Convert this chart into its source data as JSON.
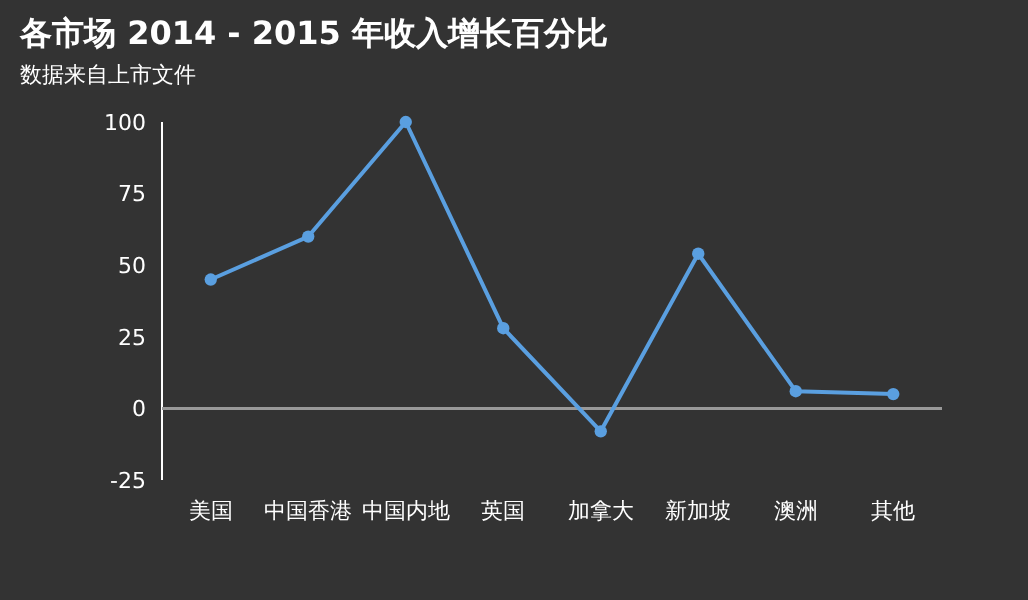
{
  "chart_data": {
    "type": "line",
    "title": "各市场 2014 - 2015 年收入增长百分比",
    "subtitle": "数据来自上市文件",
    "categories": [
      "美国",
      "中国香港",
      "中国内地",
      "英国",
      "加拿大",
      "新加坡",
      "澳洲",
      "其他"
    ],
    "series": [
      {
        "color": "#5a9fe0",
        "values": [
          45,
          60,
          100,
          28,
          -8,
          54,
          6,
          5
        ]
      }
    ],
    "ylim": [
      -25,
      100
    ],
    "yticks": [
      -25,
      0,
      25,
      50,
      75,
      100
    ],
    "ref_lines": [
      {
        "axis": "y",
        "value": 0,
        "color": "#999999"
      }
    ],
    "marker": "circle",
    "line_style": "solid"
  }
}
